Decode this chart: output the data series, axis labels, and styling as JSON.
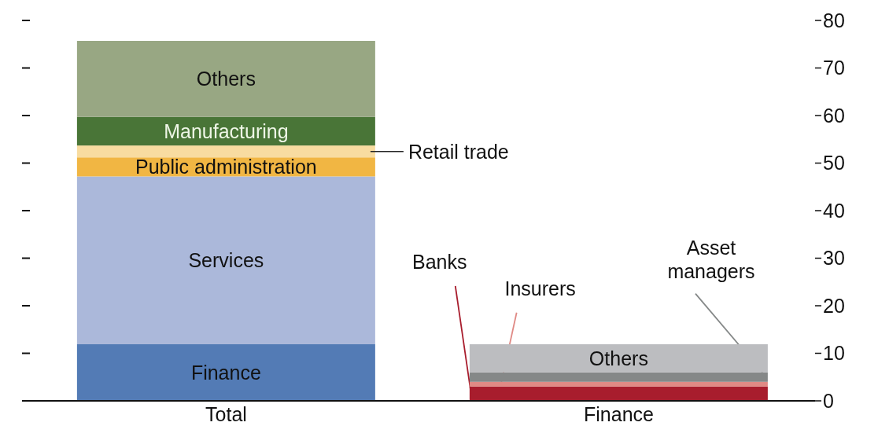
{
  "chart_data": {
    "type": "bar",
    "stacked": true,
    "categories": [
      "Total",
      "Finance"
    ],
    "series": [
      {
        "name": "Finance",
        "color": "#537bb5",
        "values": [
          11.9,
          null
        ]
      },
      {
        "name": "Services",
        "color": "#abb8da",
        "values": [
          35.3,
          null
        ]
      },
      {
        "name": "Public administration",
        "color": "#f1b643",
        "values": [
          4.0,
          null
        ]
      },
      {
        "name": "Retail trade",
        "color": "#f8dca0",
        "values": [
          2.5,
          null
        ]
      },
      {
        "name": "Manufacturing",
        "color": "#497537",
        "values": [
          6.0,
          null
        ]
      },
      {
        "name": "Others",
        "color": "#98a783",
        "values": [
          16.0,
          null
        ]
      },
      {
        "name": "Banks",
        "color": "#a81d2d",
        "values": [
          null,
          3.0
        ]
      },
      {
        "name": "Insurers",
        "color": "#e08a85",
        "values": [
          null,
          1.0
        ]
      },
      {
        "name": "Asset managers",
        "color": "#858888",
        "values": [
          null,
          2.0
        ]
      },
      {
        "name": "Others",
        "color": "#bcbdc0",
        "values": [
          null,
          5.9
        ]
      }
    ],
    "ylim": [
      0,
      80
    ],
    "yticks": [
      0,
      10,
      20,
      30,
      40,
      50,
      60,
      70,
      80
    ]
  }
}
